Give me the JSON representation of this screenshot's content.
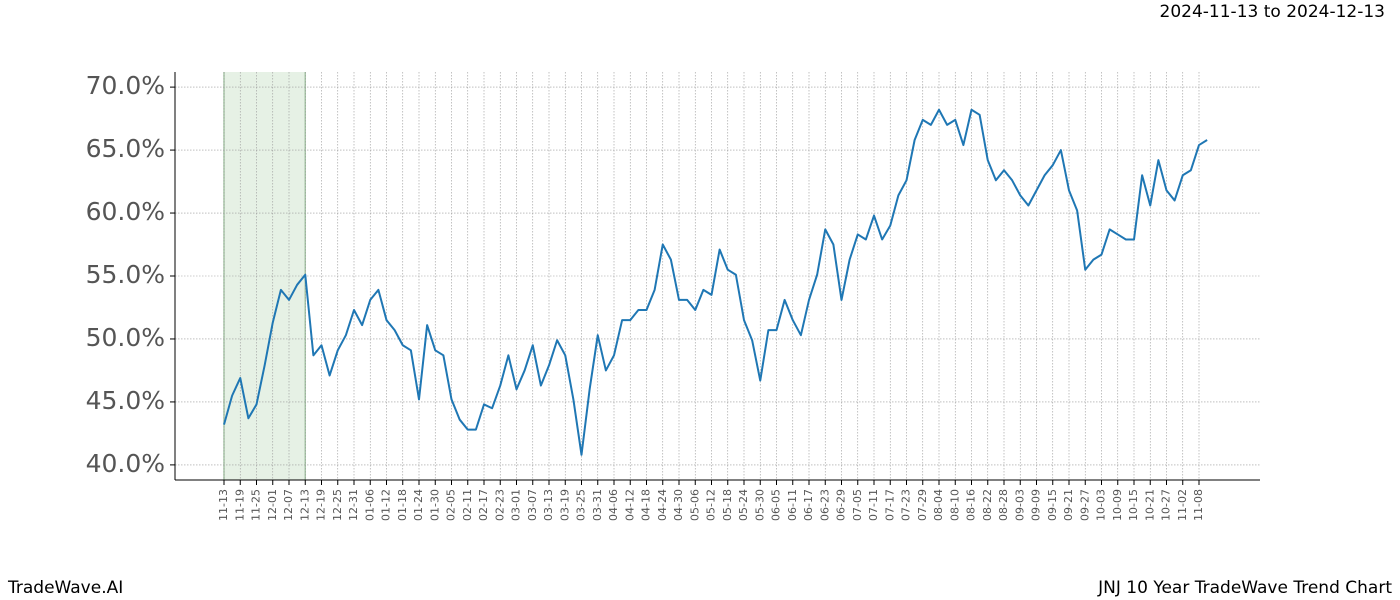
{
  "chart_data": {
    "type": "line",
    "title": "2024-11-13 to 2024-12-13",
    "footer_left": "TradeWave.AI",
    "footer_right": "JNJ 10 Year TradeWave Trend Chart",
    "categories": [
      "11-13",
      null,
      "11-19",
      null,
      "11-25",
      null,
      "12-01",
      null,
      "12-07",
      null,
      "12-13",
      null,
      "12-19",
      null,
      "12-25",
      null,
      "12-31",
      null,
      "01-06",
      null,
      "01-12",
      null,
      "01-18",
      null,
      "01-24",
      null,
      "01-30",
      null,
      "02-05",
      null,
      "02-11",
      null,
      "02-17",
      null,
      "02-23",
      null,
      "03-01",
      null,
      "03-07",
      null,
      "03-13",
      null,
      "03-19",
      null,
      "03-25",
      null,
      "03-31",
      null,
      "04-06",
      null,
      "04-12",
      null,
      "04-18",
      null,
      "04-24",
      null,
      "04-30",
      null,
      "05-06",
      null,
      "05-12",
      null,
      "05-18",
      null,
      "05-24",
      null,
      "05-30",
      null,
      "06-05",
      null,
      "06-11",
      null,
      "06-17",
      null,
      "06-23",
      null,
      "06-29",
      null,
      "07-05",
      null,
      "07-11",
      null,
      "07-17",
      null,
      "07-23",
      null,
      "07-29",
      null,
      "08-04",
      null,
      "08-10",
      null,
      "08-16",
      null,
      "08-22",
      null,
      "08-28",
      null,
      "09-03",
      null,
      "09-09",
      null,
      "09-15",
      null,
      "09-21",
      null,
      "09-27",
      null,
      "10-03",
      null,
      "10-09",
      null,
      "10-15",
      null,
      "10-21",
      null,
      "10-27",
      null,
      "11-02",
      null,
      "11-08",
      null
    ],
    "values": [
      43.2,
      45.5,
      46.9,
      43.7,
      44.8,
      47.9,
      51.3,
      53.9,
      53.1,
      54.3,
      55.1,
      48.7,
      49.5,
      47.1,
      49.1,
      50.3,
      52.3,
      51.1,
      53.1,
      53.9,
      51.5,
      50.7,
      49.5,
      49.1,
      45.2,
      51.1,
      49.1,
      48.7,
      45.2,
      43.6,
      42.8,
      42.8,
      44.8,
      44.5,
      46.3,
      48.7,
      46.0,
      47.5,
      49.5,
      46.3,
      47.9,
      49.9,
      48.7,
      45.2,
      40.8,
      46.0,
      50.3,
      47.5,
      48.7,
      51.5,
      51.5,
      52.3,
      52.3,
      53.9,
      57.5,
      56.3,
      53.1,
      53.1,
      52.3,
      53.9,
      53.5,
      57.1,
      55.5,
      55.1,
      51.5,
      49.9,
      46.7,
      50.7,
      50.7,
      53.1,
      51.5,
      50.3,
      53.1,
      55.1,
      58.7,
      57.5,
      53.1,
      56.3,
      58.3,
      57.9,
      59.8,
      57.9,
      59.0,
      61.4,
      62.6,
      65.8,
      67.4,
      67.0,
      68.2,
      67.0,
      67.4,
      65.4,
      68.2,
      67.8,
      64.2,
      62.6,
      63.4,
      62.6,
      61.4,
      60.6,
      61.8,
      63.0,
      63.8,
      65.0,
      61.8,
      60.2,
      55.5,
      56.3,
      56.7,
      58.7,
      58.3,
      57.9,
      57.9,
      63.0,
      60.6,
      64.2,
      61.8,
      61.0,
      63.0,
      63.4,
      65.4,
      65.8
    ],
    "color": "#1f77b4",
    "highlight_color": "#d5e8d4",
    "ylim": [
      38.8,
      71.2
    ],
    "yticks": [
      {
        "value": 40,
        "label": "40.0%"
      },
      {
        "value": 45,
        "label": "45.0%"
      },
      {
        "value": 50,
        "label": "50.0%"
      },
      {
        "value": 55,
        "label": "55.0%"
      },
      {
        "value": 60,
        "label": "60.0%"
      },
      {
        "value": 65,
        "label": "65.0%"
      },
      {
        "value": 70,
        "label": "70.0%"
      }
    ],
    "grid": true
  }
}
